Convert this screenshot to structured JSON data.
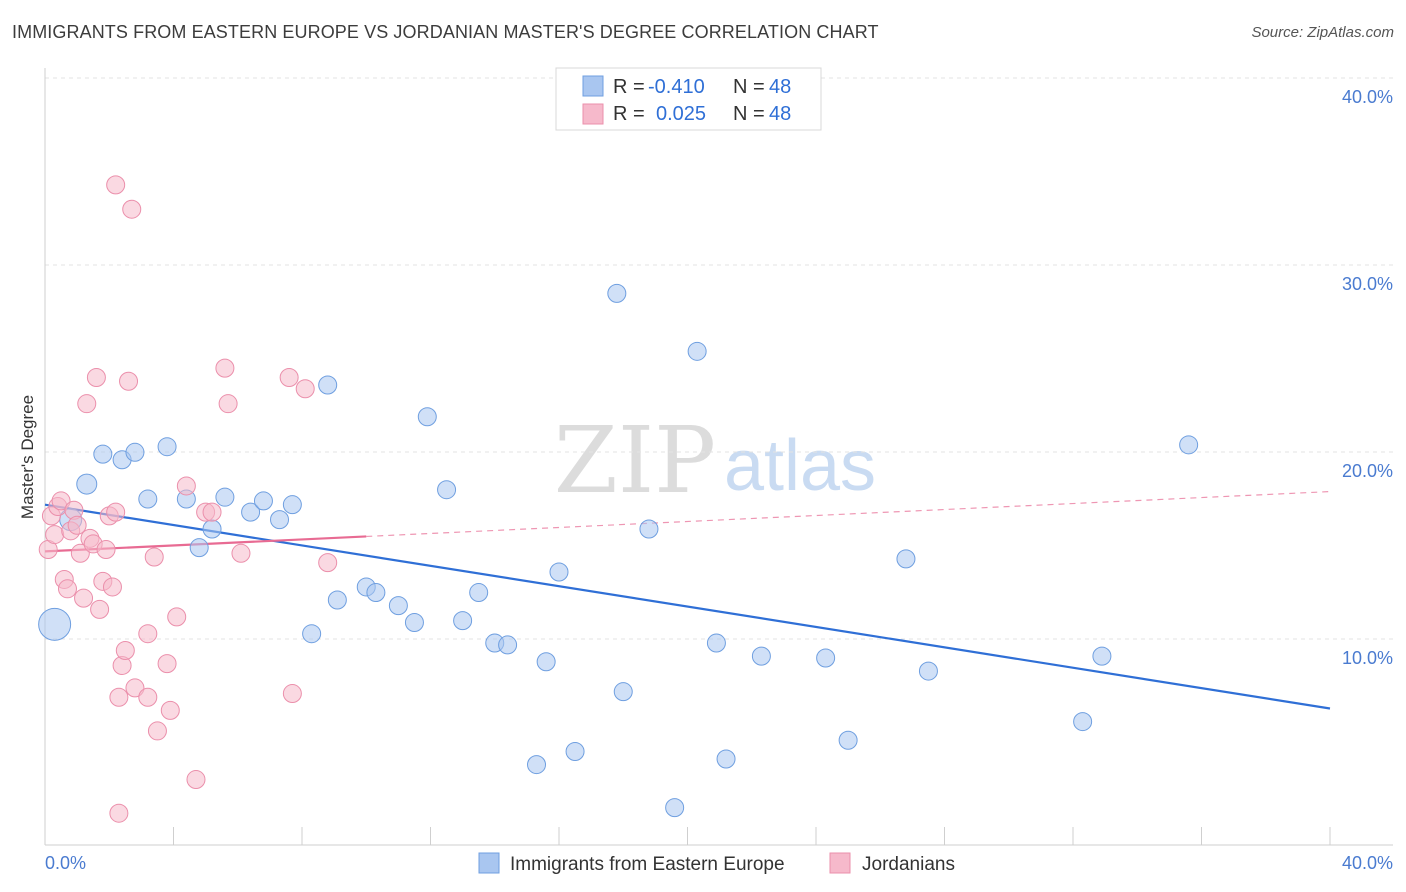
{
  "header": {
    "title": "IMMIGRANTS FROM EASTERN EUROPE VS JORDANIAN MASTER'S DEGREE CORRELATION CHART",
    "source": "Source: ZipAtlas.com"
  },
  "watermark": {
    "zip": "ZIP",
    "atlas": "atlas"
  },
  "legend_top": [
    {
      "r_label": "R =",
      "r_value": "-0.410",
      "n_label": "N =",
      "n_value": "48",
      "color": "#a9c6f0"
    },
    {
      "r_label": "R =",
      "r_value": "0.025",
      "n_label": "N =",
      "n_value": "48",
      "color": "#f6b9cb"
    }
  ],
  "legend_bottom": [
    {
      "label": "Immigrants from Eastern Europe",
      "color": "#a9c6f0"
    },
    {
      "label": "Jordanians",
      "color": "#f6b9cb"
    }
  ],
  "chart_data": {
    "type": "scatter",
    "title": "IMMIGRANTS FROM EASTERN EUROPE VS JORDANIAN MASTER'S DEGREE CORRELATION CHART",
    "xlabel": "",
    "ylabel": "Master's Degree",
    "xlim": [
      0,
      40
    ],
    "ylim": [
      0,
      40
    ],
    "x_tick_labels": [
      "0.0%",
      "40.0%"
    ],
    "y_tick_values": [
      10,
      20,
      30,
      40
    ],
    "y_tick_labels": [
      "10.0%",
      "20.0%",
      "30.0%",
      "40.0%"
    ],
    "grid": true,
    "series": [
      {
        "name": "Immigrants from Eastern Europe",
        "color": "#a9c6f0",
        "stroke": "#6f9fe0",
        "points": [
          [
            0.3,
            11.8,
            16
          ],
          [
            0.8,
            17.4,
            11
          ],
          [
            1.3,
            19.3,
            10
          ],
          [
            1.8,
            20.9,
            9
          ],
          [
            2.4,
            20.6,
            9
          ],
          [
            2.8,
            21.0,
            9
          ],
          [
            3.2,
            18.5,
            9
          ],
          [
            3.8,
            21.3,
            9
          ],
          [
            4.4,
            18.5,
            9
          ],
          [
            4.8,
            15.9,
            9
          ],
          [
            5.2,
            16.9,
            9
          ],
          [
            5.6,
            18.6,
            9
          ],
          [
            6.4,
            17.8,
            9
          ],
          [
            6.8,
            18.4,
            9
          ],
          [
            7.3,
            17.4,
            9
          ],
          [
            7.7,
            18.2,
            9
          ],
          [
            8.3,
            11.3,
            9
          ],
          [
            8.8,
            24.6,
            9
          ],
          [
            9.1,
            13.1,
            9
          ],
          [
            10.0,
            13.8,
            9
          ],
          [
            10.3,
            13.5,
            9
          ],
          [
            11.0,
            12.8,
            9
          ],
          [
            11.5,
            11.9,
            9
          ],
          [
            11.9,
            22.9,
            9
          ],
          [
            12.5,
            19.0,
            9
          ],
          [
            13.0,
            12.0,
            9
          ],
          [
            13.5,
            13.5,
            9
          ],
          [
            14.0,
            10.8,
            9
          ],
          [
            14.4,
            10.7,
            9
          ],
          [
            15.3,
            4.3,
            9
          ],
          [
            15.6,
            9.8,
            9
          ],
          [
            16.0,
            14.6,
            9
          ],
          [
            16.5,
            5.0,
            9
          ],
          [
            17.8,
            29.5,
            9
          ],
          [
            18.0,
            8.2,
            9
          ],
          [
            18.8,
            16.9,
            9
          ],
          [
            19.6,
            2.0,
            9
          ],
          [
            20.3,
            26.4,
            9
          ],
          [
            20.9,
            10.8,
            9
          ],
          [
            21.2,
            4.6,
            9
          ],
          [
            22.3,
            10.1,
            9
          ],
          [
            24.3,
            10.0,
            9
          ],
          [
            25.0,
            5.6,
            9
          ],
          [
            26.8,
            15.3,
            9
          ],
          [
            27.5,
            9.3,
            9
          ],
          [
            32.3,
            6.6,
            9
          ],
          [
            32.9,
            10.1,
            9
          ],
          [
            35.6,
            21.4,
            9
          ]
        ],
        "trend": {
          "x": [
            0,
            40
          ],
          "y": [
            18.2,
            7.3
          ],
          "dashed_from": null
        }
      },
      {
        "name": "Jordanians",
        "color": "#f6b9cb",
        "stroke": "#eb8fab",
        "points": [
          [
            0.1,
            15.8,
            9
          ],
          [
            0.2,
            17.6,
            9
          ],
          [
            0.3,
            16.6,
            9
          ],
          [
            0.4,
            18.1,
            9
          ],
          [
            0.5,
            18.4,
            9
          ],
          [
            0.6,
            14.2,
            9
          ],
          [
            0.7,
            13.7,
            9
          ],
          [
            0.8,
            16.8,
            9
          ],
          [
            0.9,
            17.9,
            9
          ],
          [
            1.0,
            17.1,
            9
          ],
          [
            1.1,
            15.6,
            9
          ],
          [
            1.2,
            13.2,
            9
          ],
          [
            1.3,
            23.6,
            9
          ],
          [
            1.4,
            16.4,
            9
          ],
          [
            1.5,
            16.1,
            9
          ],
          [
            1.6,
            25.0,
            9
          ],
          [
            1.7,
            12.6,
            9
          ],
          [
            1.8,
            14.1,
            9
          ],
          [
            1.9,
            15.8,
            9
          ],
          [
            2.0,
            17.6,
            9
          ],
          [
            2.1,
            13.8,
            9
          ],
          [
            2.2,
            17.8,
            9
          ],
          [
            2.3,
            1.7,
            9
          ],
          [
            2.3,
            7.9,
            9
          ],
          [
            2.4,
            9.6,
            9
          ],
          [
            2.5,
            10.4,
            9
          ],
          [
            2.6,
            24.8,
            9
          ],
          [
            2.7,
            34.0,
            9
          ],
          [
            2.8,
            8.4,
            9
          ],
          [
            2.2,
            35.3,
            9
          ],
          [
            3.2,
            11.3,
            9
          ],
          [
            3.2,
            7.9,
            9
          ],
          [
            3.4,
            15.4,
            9
          ],
          [
            3.5,
            6.1,
            9
          ],
          [
            3.8,
            9.7,
            9
          ],
          [
            3.9,
            7.2,
            9
          ],
          [
            4.1,
            12.2,
            9
          ],
          [
            4.4,
            19.2,
            9
          ],
          [
            4.7,
            3.5,
            9
          ],
          [
            5.0,
            17.8,
            9
          ],
          [
            5.2,
            17.8,
            9
          ],
          [
            5.6,
            25.5,
            9
          ],
          [
            5.7,
            23.6,
            9
          ],
          [
            6.1,
            15.6,
            9
          ],
          [
            7.6,
            25.0,
            9
          ],
          [
            7.7,
            8.1,
            9
          ],
          [
            8.1,
            24.4,
            9
          ],
          [
            8.8,
            15.1,
            9
          ]
        ],
        "trend": {
          "x": [
            0,
            40
          ],
          "y": [
            15.7,
            18.9
          ],
          "dashed_from": 10
        }
      }
    ]
  }
}
